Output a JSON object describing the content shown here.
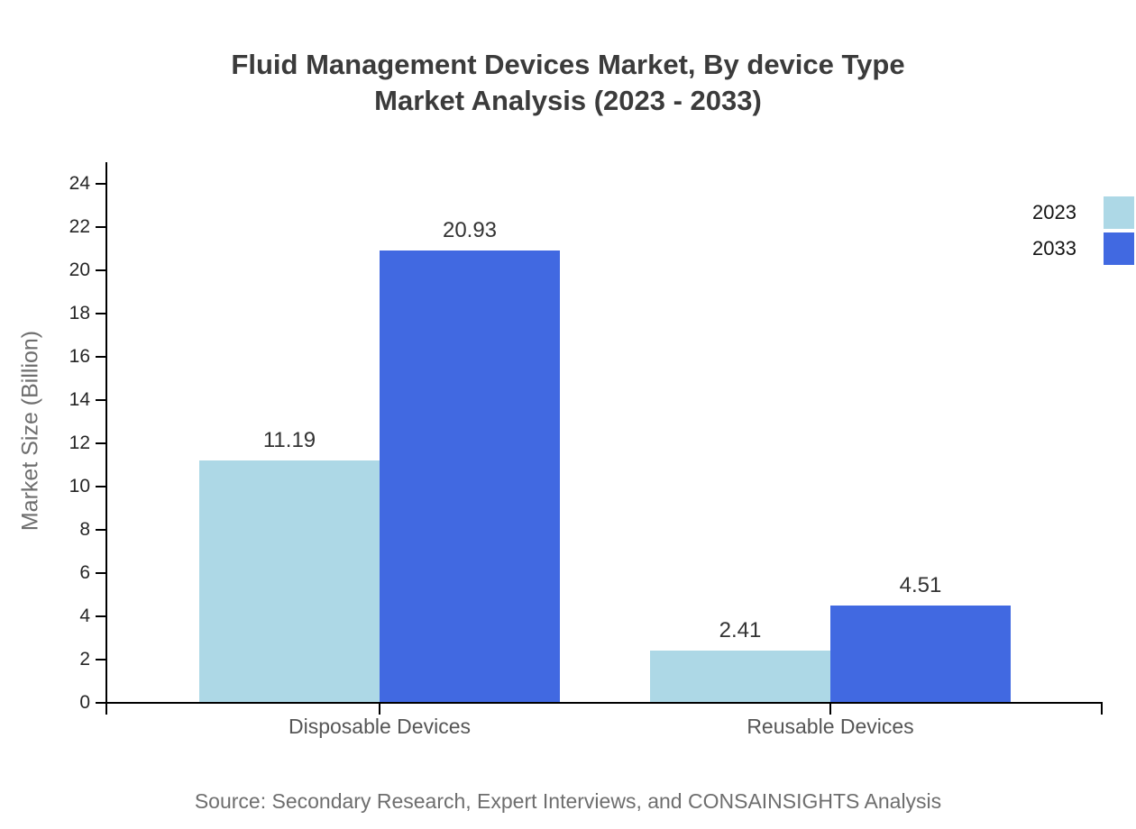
{
  "title": {
    "line1": "Fluid Management Devices Market, By device Type",
    "line2": "Market Analysis (2023 - 2033)"
  },
  "source": "Source: Secondary Research, Expert Interviews, and CONSAINSIGHTS Analysis",
  "chart_data": {
    "type": "bar",
    "categories": [
      "Disposable Devices",
      "Reusable Devices"
    ],
    "series": [
      {
        "name": "2023",
        "color": "#ADD8E6",
        "values": [
          11.19,
          2.41
        ]
      },
      {
        "name": "2033",
        "color": "#4169E1",
        "values": [
          20.93,
          4.51
        ]
      }
    ],
    "title": "Fluid Management Devices Market, By device Type Market Analysis (2023 - 2033)",
    "xlabel": "",
    "ylabel": "Market Size (Billion)",
    "ylim": [
      0,
      25
    ],
    "yticks": [
      0,
      2,
      4,
      6,
      8,
      10,
      12,
      14,
      16,
      18,
      20,
      22,
      24
    ],
    "grid": false,
    "value_labels": true,
    "legend_position": "top-right"
  },
  "colors": {
    "series_2023": "#ADD8E6",
    "series_2033": "#4169E1",
    "axis": "#000000",
    "title_text": "#3b3b3b",
    "tick_text": "#262626",
    "category_text": "#565656",
    "value_text": "#333333",
    "muted_text": "#6e6e6e"
  }
}
